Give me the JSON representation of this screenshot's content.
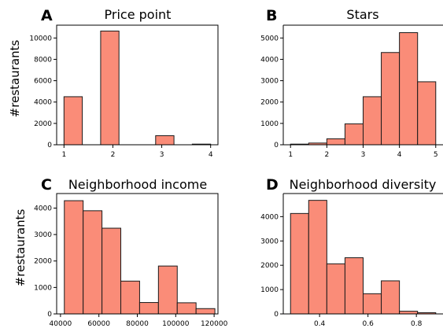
{
  "figure": {
    "ylabel_row1": "#restaurants",
    "ylabel_row2": "#restaurants"
  },
  "chart_data": [
    {
      "panel": "A",
      "type": "bar",
      "title": "Price point",
      "xlabel": "",
      "ylabel": "#restaurants",
      "bar_color": "#fa8c78",
      "edge_color": "#1a1a1a",
      "xlim": [
        0.85,
        4.15
      ],
      "ylim": [
        0,
        11200
      ],
      "xticks": [
        1,
        2,
        3,
        4
      ],
      "xtick_labels": [
        "1",
        "2",
        "3",
        "4"
      ],
      "yticks": [
        0,
        2000,
        4000,
        6000,
        8000,
        10000
      ],
      "ytick_labels": [
        "0",
        "2000",
        "4000",
        "6000",
        "8000",
        "10000"
      ],
      "bin_edges": [
        1.0,
        1.375,
        1.75,
        2.125,
        2.5,
        2.875,
        3.25,
        3.625,
        4.0
      ],
      "values": [
        4500,
        0,
        10650,
        0,
        0,
        850,
        0,
        60
      ]
    },
    {
      "panel": "B",
      "type": "bar",
      "title": "Stars",
      "xlabel": "",
      "ylabel": "",
      "bar_color": "#fa8c78",
      "edge_color": "#1a1a1a",
      "xlim": [
        0.8,
        5.2
      ],
      "ylim": [
        0,
        5600
      ],
      "xticks": [
        1,
        2,
        3,
        4,
        5
      ],
      "xtick_labels": [
        "1",
        "2",
        "3",
        "4",
        "5"
      ],
      "yticks": [
        0,
        1000,
        2000,
        3000,
        4000,
        5000
      ],
      "ytick_labels": [
        "0",
        "1000",
        "2000",
        "3000",
        "4000",
        "5000"
      ],
      "bin_edges": [
        1.0,
        1.5,
        2.0,
        2.5,
        3.0,
        3.5,
        4.0,
        4.5,
        5.0
      ],
      "values": [
        30,
        80,
        280,
        980,
        2250,
        4320,
        5250,
        2950
      ]
    },
    {
      "panel": "C",
      "type": "bar",
      "title": "Neighborhood income",
      "xlabel": "",
      "ylabel": "#restaurants",
      "bar_color": "#fa8c78",
      "edge_color": "#1a1a1a",
      "xlim": [
        38000,
        122000
      ],
      "ylim": [
        0,
        4550
      ],
      "xticks": [
        40000,
        60000,
        80000,
        100000,
        120000
      ],
      "xtick_labels": [
        "40000",
        "60000",
        "80000",
        "100000",
        "120000"
      ],
      "yticks": [
        0,
        1000,
        2000,
        3000,
        4000
      ],
      "ytick_labels": [
        "0",
        "1000",
        "2000",
        "3000",
        "4000"
      ],
      "bin_edges": [
        42000,
        51800,
        61600,
        71400,
        81200,
        91000,
        100800,
        110600,
        120400
      ],
      "values": [
        4280,
        3900,
        3240,
        1240,
        430,
        1810,
        420,
        200
      ]
    },
    {
      "panel": "D",
      "type": "bar",
      "title": "Neighborhood diversity",
      "xlabel": "",
      "ylabel": "",
      "bar_color": "#fa8c78",
      "edge_color": "#1a1a1a",
      "xlim": [
        0.25,
        0.91
      ],
      "ylim": [
        0,
        4950
      ],
      "xticks": [
        0.4,
        0.6,
        0.8
      ],
      "xtick_labels": [
        "0.4",
        "0.6",
        "0.8"
      ],
      "yticks": [
        0,
        1000,
        2000,
        3000,
        4000
      ],
      "ytick_labels": [
        "0",
        "1000",
        "2000",
        "3000",
        "4000"
      ],
      "bin_edges": [
        0.28,
        0.355,
        0.43,
        0.505,
        0.58,
        0.655,
        0.73,
        0.805,
        0.88
      ],
      "values": [
        4130,
        4670,
        2060,
        2310,
        830,
        1360,
        110,
        50
      ]
    }
  ]
}
